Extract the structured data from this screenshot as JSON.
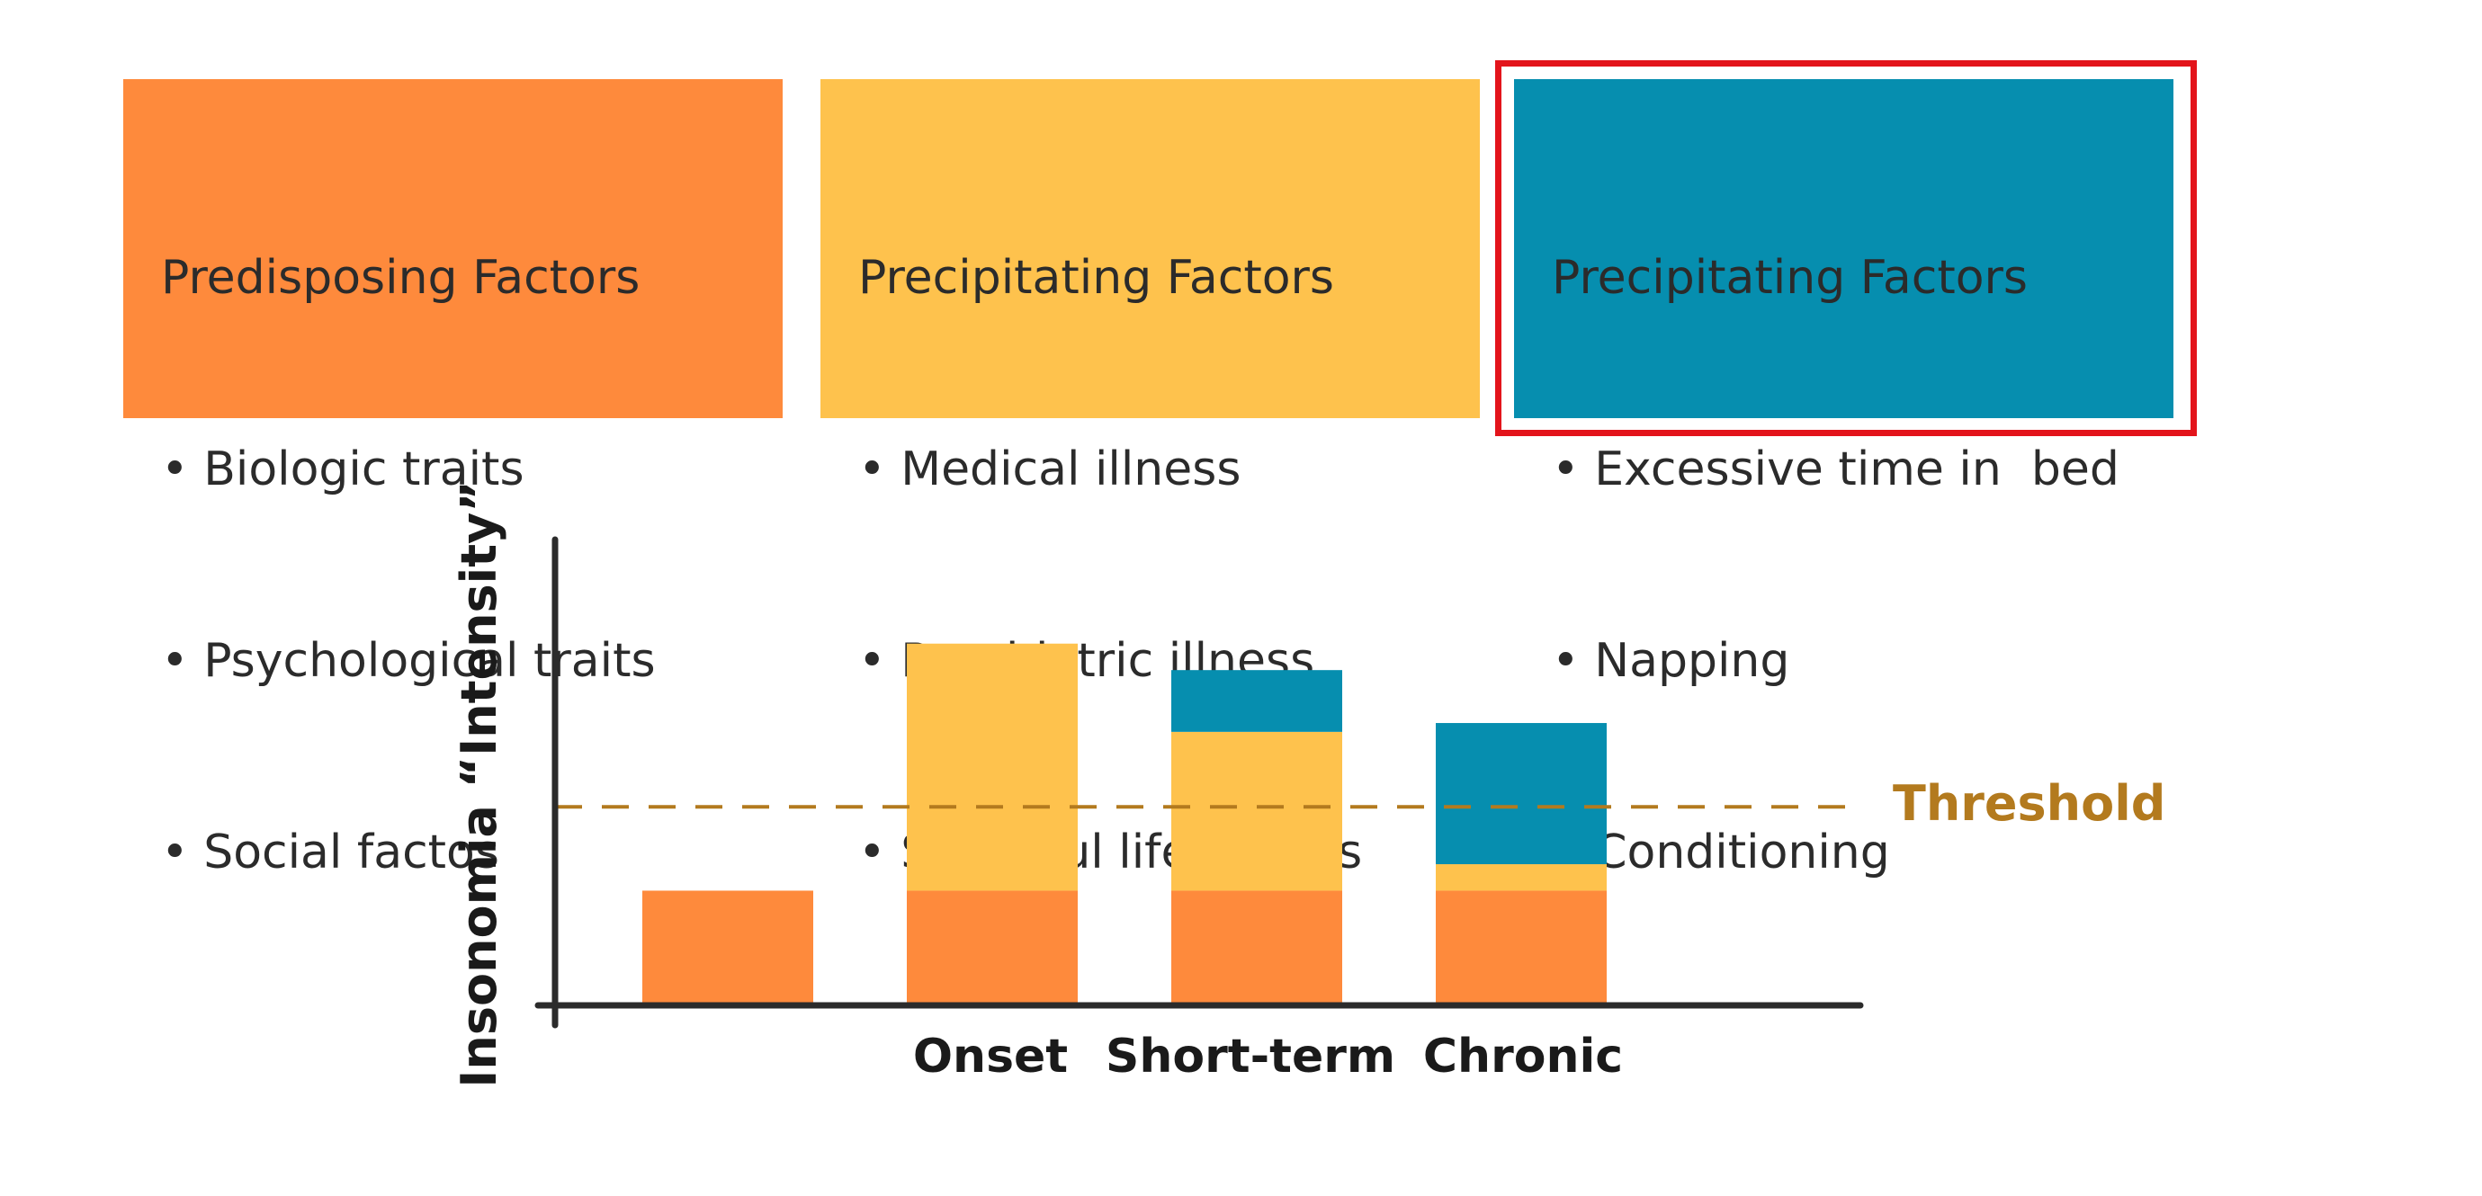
{
  "colors": {
    "predisposing": "#fe8a3c",
    "precipitating": "#fec24d",
    "perpetuating": "#068eaf",
    "threshold": "#b37a1e",
    "highlight": "#e3141b",
    "axis": "#2b2b2b"
  },
  "boxes": [
    {
      "title": "Predisposing Factors",
      "items": [
        "• Biologic traits",
        "• Psychological traits",
        "• Social factos"
      ]
    },
    {
      "title": "Precipitating Factors",
      "items": [
        "• Medical illness",
        "• Psychiatric illness",
        "• Stressful life events"
      ]
    },
    {
      "title": "Precipitating Factors",
      "items": [
        "• Excessive time in  bed",
        "• Napping",
        "• Conditioning"
      ]
    }
  ],
  "chart_data": {
    "type": "bar",
    "stacked": true,
    "ylabel": "Insonomia “Intensity”",
    "xlabel": "",
    "categories": [
      "",
      "Onset",
      "Short-term",
      "Chronic"
    ],
    "series": [
      {
        "color_key": "predisposing",
        "values": [
          13,
          13,
          13,
          13
        ]
      },
      {
        "color_key": "precipitating",
        "values": [
          0,
          28,
          18,
          3
        ]
      },
      {
        "color_key": "perpetuating",
        "values": [
          0,
          0,
          7,
          16
        ]
      }
    ],
    "threshold": {
      "label": "Threshold",
      "value": 22.5
    },
    "ylim": [
      0,
      53
    ],
    "grid": false
  }
}
